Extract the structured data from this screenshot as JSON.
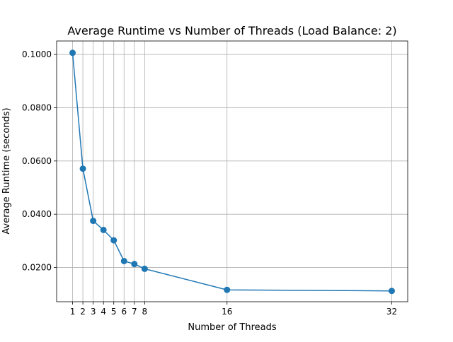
{
  "chart_data": {
    "type": "line",
    "title": "Average Runtime vs Number of Threads (Load Balance: 2)",
    "xlabel": "Number of Threads",
    "ylabel": "Average Runtime (seconds)",
    "x": [
      1,
      2,
      3,
      4,
      5,
      6,
      7,
      8,
      16,
      32
    ],
    "series": [
      {
        "values": [
          0.1006,
          0.0571,
          0.0375,
          0.0341,
          0.0302,
          0.0224,
          0.0213,
          0.0195,
          0.0116,
          0.0112
        ]
      }
    ],
    "xticks": [
      1,
      2,
      3,
      4,
      5,
      6,
      7,
      8,
      16,
      32
    ],
    "xtick_labels": [
      "1",
      "2",
      "3",
      "4",
      "5",
      "6",
      "7",
      "8",
      "16",
      "32"
    ],
    "yticks": [
      0.02,
      0.04,
      0.06,
      0.08,
      0.1
    ],
    "ytick_labels": [
      "0.0200",
      "0.0400",
      "0.0600",
      "0.0800",
      "0.1000"
    ],
    "xlim": [
      -0.55,
      33.55
    ],
    "ylim": [
      0.00714,
      0.10506
    ],
    "grid": true,
    "line_color": "#1f77b4",
    "marker": "circle"
  }
}
